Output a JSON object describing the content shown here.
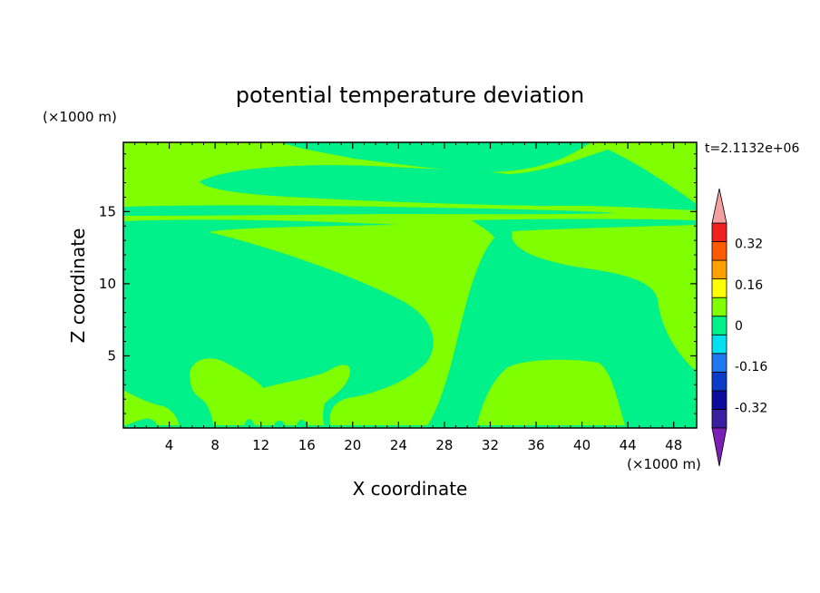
{
  "chart_data": {
    "type": "heatmap",
    "title": "potential temperature deviation",
    "xlabel": "X coordinate",
    "ylabel": "Z coordinate",
    "x_unit": "(×1000 m)",
    "y_unit": "(×1000 m)",
    "time_label": "t=2.1132e+06",
    "xlim": [
      0,
      50
    ],
    "ylim": [
      0,
      19.8
    ],
    "x_ticks": [
      4,
      8,
      12,
      16,
      20,
      24,
      28,
      32,
      36,
      40,
      44,
      48
    ],
    "y_ticks": [
      5,
      10,
      15
    ],
    "colorbar": {
      "levels": [
        -0.4,
        -0.32,
        -0.24,
        -0.16,
        -0.08,
        0,
        0.08,
        0.16,
        0.24,
        0.32,
        0.4
      ],
      "colors": [
        "#3a1f9e",
        "#0b0ba0",
        "#0a3cc8",
        "#1e78f0",
        "#00e0f0",
        "#00f08a",
        "#80ff00",
        "#ffff00",
        "#ffa000",
        "#ff5a00",
        "#f02020"
      ],
      "under_color": "#7c1fb4",
      "over_color": "#f5a0a0",
      "labels": [
        "0.32",
        "0.16",
        "0",
        "-0.16",
        "-0.32"
      ],
      "label_values": [
        0.32,
        0.16,
        0,
        -0.16,
        -0.32
      ]
    },
    "regions": [
      {
        "name": "negative-deviation",
        "value_range": [
          -0.08,
          0
        ],
        "color": "#00f08a"
      },
      {
        "name": "positive-deviation",
        "value_range": [
          0,
          0.08
        ],
        "color": "#80ff00"
      }
    ]
  }
}
